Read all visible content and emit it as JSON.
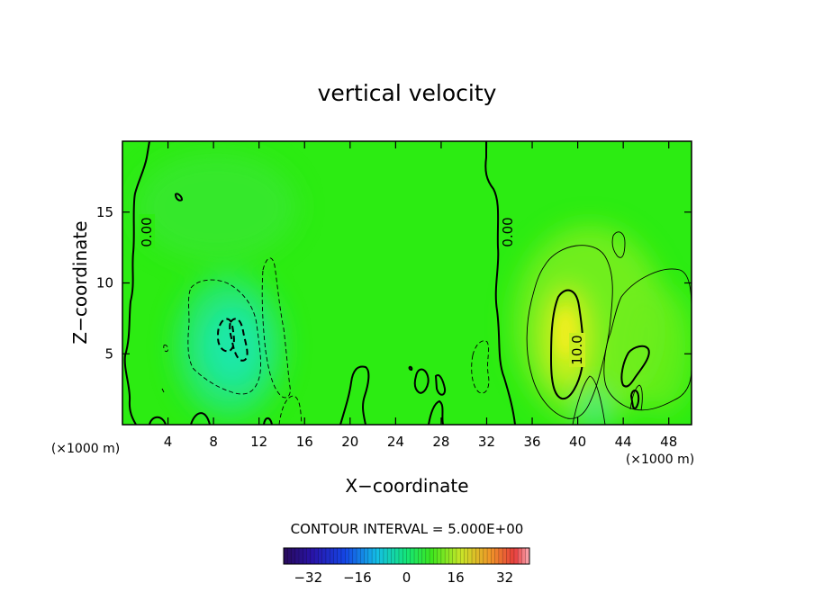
{
  "chart_data": {
    "type": "contour",
    "title": "vertical velocity",
    "xlabel": "X−coordinate",
    "ylabel": "Z−coordinate",
    "x_unit": "(×1000 m)",
    "z_unit": "(×1000 m)",
    "xlim": [
      0,
      50
    ],
    "ylim": [
      0,
      20
    ],
    "x_ticks": [
      4,
      8,
      12,
      16,
      20,
      24,
      28,
      32,
      36,
      40,
      44,
      48
    ],
    "y_ticks": [
      5,
      10,
      15
    ],
    "x_tick_labels": [
      "4",
      "8",
      "12",
      "16",
      "20",
      "24",
      "28",
      "32",
      "36",
      "40",
      "44",
      "48"
    ],
    "y_tick_labels": [
      "5",
      "10",
      "15"
    ],
    "contour_interval_text": "CONTOUR INTERVAL = 5.000E+00",
    "contour_labels": [
      {
        "text": "0.00",
        "x": 2.2,
        "z": 13.5
      },
      {
        "text": "0.00",
        "x": 34.2,
        "z": 13.5
      },
      {
        "text": "10.0",
        "x": 39.5,
        "z": 5.0
      }
    ],
    "colorbar": {
      "range": [
        -40,
        40
      ],
      "tick_values": [
        -32,
        -16,
        0,
        16,
        32
      ],
      "tick_labels": [
        "−32",
        "−16",
        "0",
        "16",
        "32"
      ]
    },
    "field_max_approx": 20,
    "field_min_approx": -10,
    "positive_line_style": "solid",
    "negative_line_style": "dashed"
  }
}
